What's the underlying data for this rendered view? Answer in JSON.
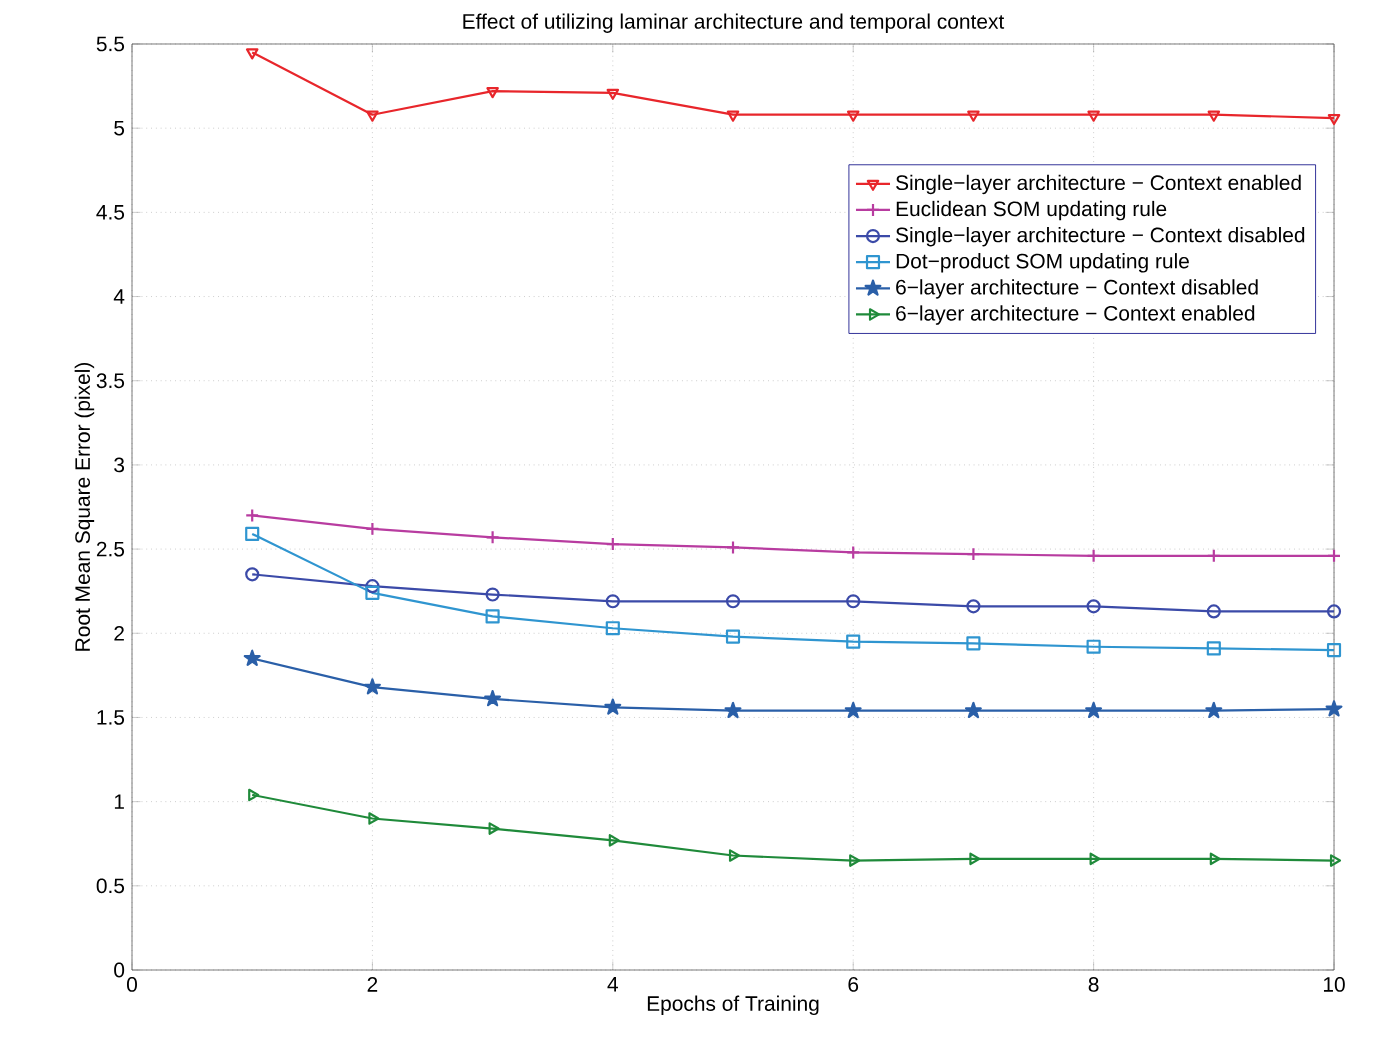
{
  "chart_data": {
    "type": "line",
    "title": "Effect of utilizing laminar architecture and temporal context",
    "xlabel": "Epochs of Training",
    "ylabel": "Root Mean Square Error (pixel)",
    "x": [
      1,
      2,
      3,
      4,
      5,
      6,
      7,
      8,
      9,
      10
    ],
    "series": [
      {
        "name": "Single−layer architecture − Context enabled",
        "color": "#e8262b",
        "marker": "triangle-down",
        "values": [
          5.45,
          5.08,
          5.22,
          5.21,
          5.08,
          5.08,
          5.08,
          5.08,
          5.08,
          5.06
        ]
      },
      {
        "name": "Euclidean SOM updating rule",
        "color": "#b83ca0",
        "marker": "plus",
        "values": [
          2.7,
          2.62,
          2.57,
          2.53,
          2.51,
          2.48,
          2.47,
          2.46,
          2.46,
          2.46
        ]
      },
      {
        "name": "Single−layer architecture − Context disabled",
        "color": "#3b4aa8",
        "marker": "circle",
        "values": [
          2.35,
          2.28,
          2.23,
          2.19,
          2.19,
          2.19,
          2.16,
          2.16,
          2.13,
          2.13
        ]
      },
      {
        "name": "Dot−product SOM updating rule",
        "color": "#2f95d0",
        "marker": "square",
        "values": [
          2.59,
          2.24,
          2.1,
          2.03,
          1.98,
          1.95,
          1.94,
          1.92,
          1.91,
          1.9
        ]
      },
      {
        "name": "6−layer architecture − Context disabled",
        "color": "#2a5fa8",
        "marker": "star",
        "values": [
          1.85,
          1.68,
          1.61,
          1.56,
          1.54,
          1.54,
          1.54,
          1.54,
          1.54,
          1.55
        ]
      },
      {
        "name": "6−layer architecture − Context enabled",
        "color": "#1f8a3a",
        "marker": "triangle-right",
        "values": [
          1.04,
          0.9,
          0.84,
          0.77,
          0.68,
          0.65,
          0.66,
          0.66,
          0.66,
          0.65
        ]
      }
    ],
    "xlim": [
      0,
      10
    ],
    "ylim": [
      0,
      5.5
    ],
    "xticks": [
      0,
      2,
      4,
      6,
      8,
      10
    ],
    "yticks": [
      0,
      0.5,
      1,
      1.5,
      2,
      2.5,
      3,
      3.5,
      4,
      4.5,
      5,
      5.5
    ],
    "grid": true,
    "legend": "top right",
    "line_style": "solid"
  }
}
